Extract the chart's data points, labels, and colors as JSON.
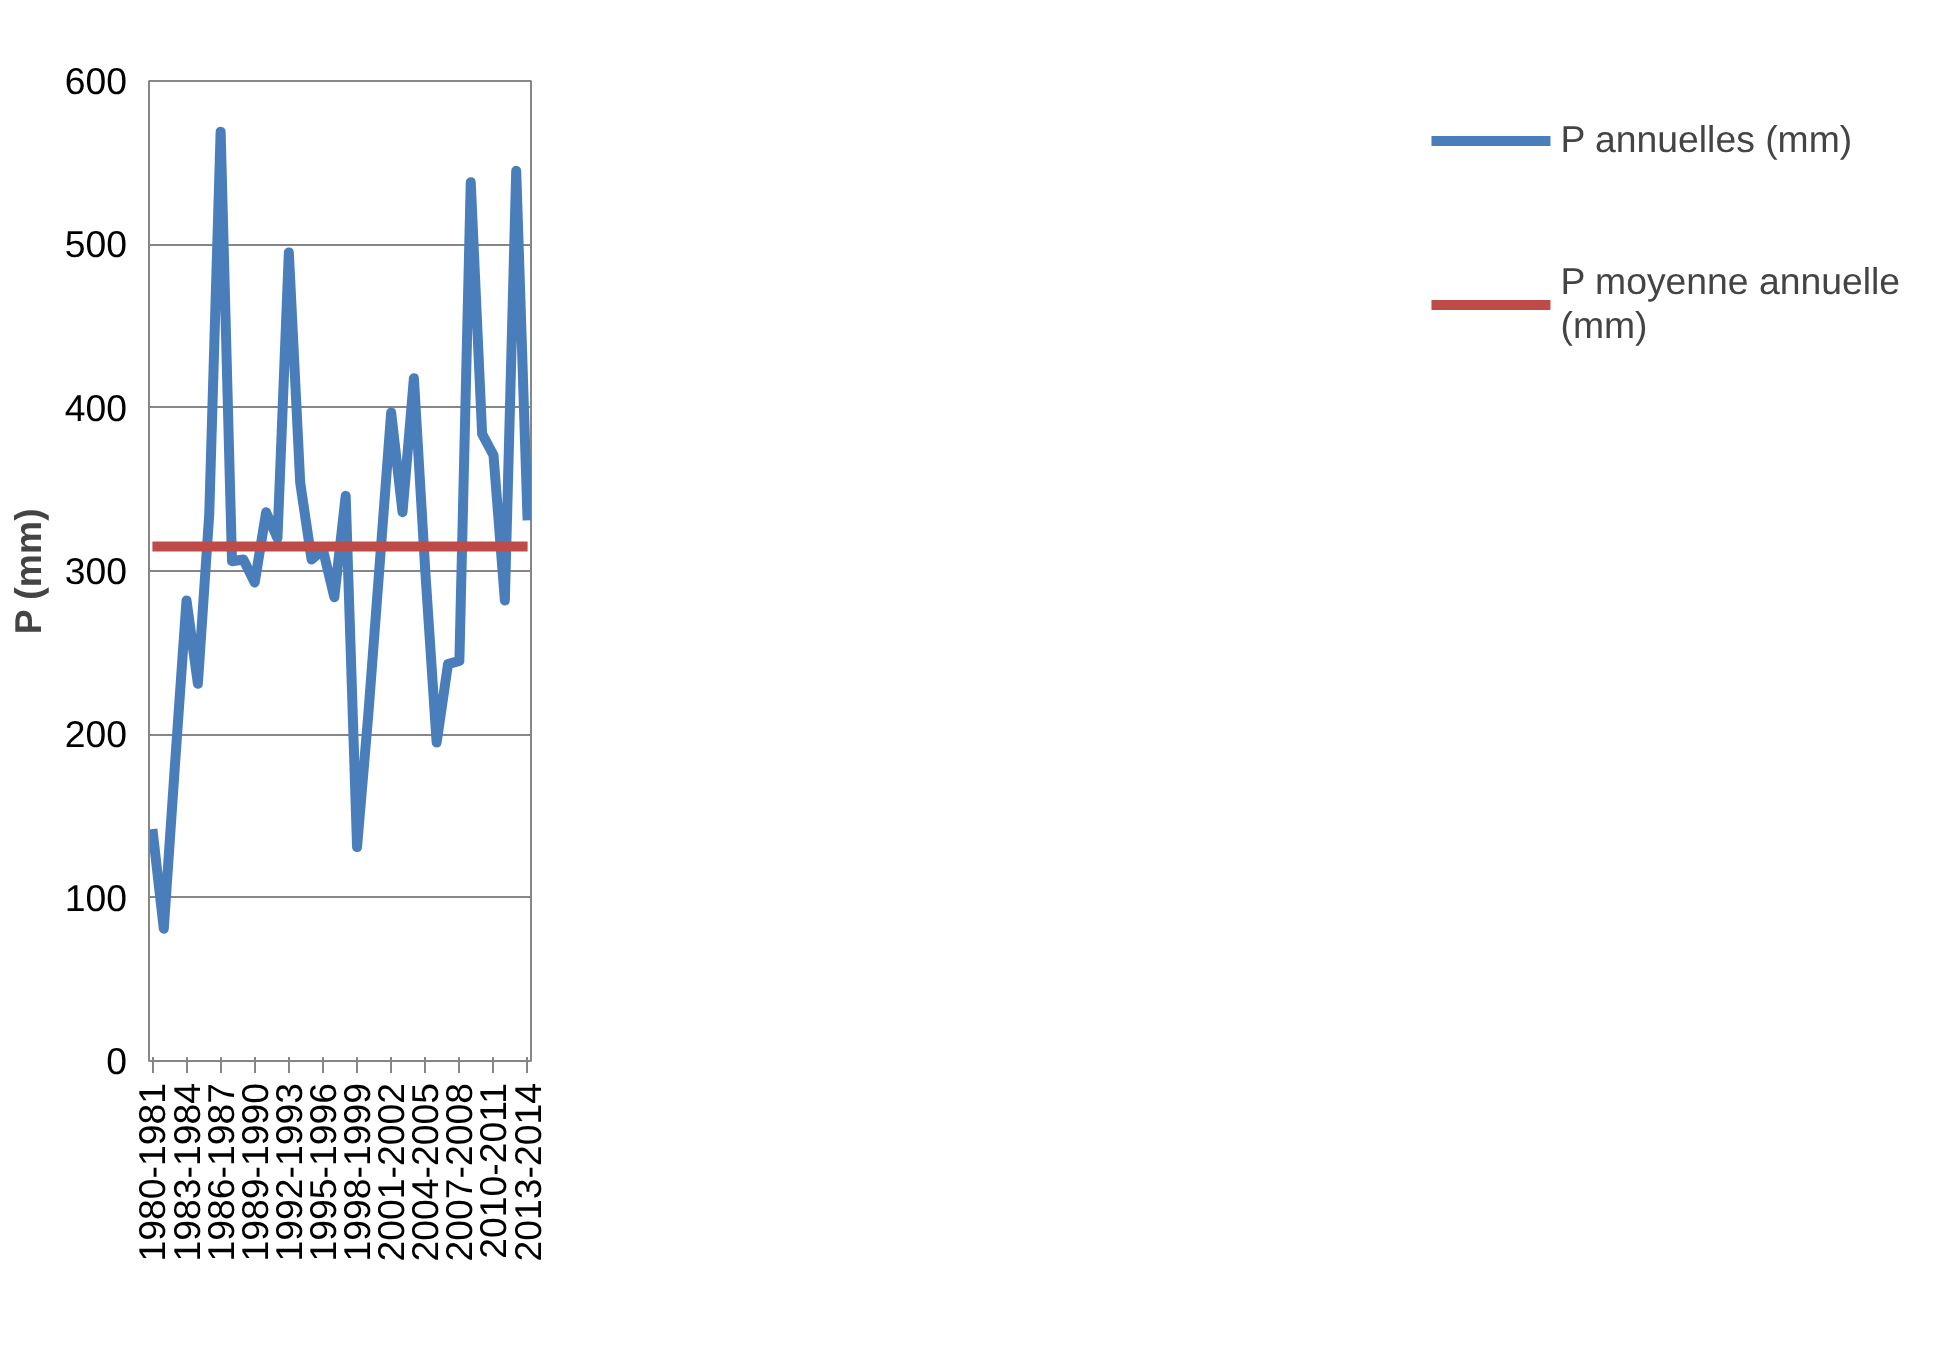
{
  "chart_data": {
    "type": "line",
    "ylabel": "P (mm)",
    "categories": [
      "1980-1981",
      null,
      null,
      "1983-1984",
      null,
      null,
      "1986-1987",
      null,
      null,
      "1989-1990",
      null,
      null,
      "1992-1993",
      null,
      null,
      "1995-1996",
      null,
      null,
      "1998-1999",
      null,
      null,
      "2001-2002",
      null,
      null,
      "2004-2005",
      null,
      null,
      "2007-2008",
      null,
      null,
      "2010-2011",
      null,
      null,
      "2013-2014"
    ],
    "series": [
      {
        "name": "P annuelles (mm)",
        "color": "#4a7ebb",
        "values": [
          142,
          81,
          183,
          282,
          231,
          335,
          569,
          306,
          307,
          293,
          336,
          320,
          495,
          354,
          307,
          313,
          284,
          346,
          131,
          213,
          305,
          397,
          336,
          418,
          300,
          195,
          243,
          245,
          538,
          384,
          371,
          282,
          545,
          331
        ]
      },
      {
        "name": "P moyenne annuelle (mm)",
        "color": "#be4b48",
        "values": [
          315,
          315,
          315,
          315,
          315,
          315,
          315,
          315,
          315,
          315,
          315,
          315,
          315,
          315,
          315,
          315,
          315,
          315,
          315,
          315,
          315,
          315,
          315,
          315,
          315,
          315,
          315,
          315,
          315,
          315,
          315,
          315,
          315,
          315
        ]
      }
    ],
    "ylim": [
      0,
      600
    ],
    "yticks": [
      0,
      100,
      200,
      300,
      400,
      500,
      600
    ],
    "grid": "y",
    "legend": "right"
  }
}
